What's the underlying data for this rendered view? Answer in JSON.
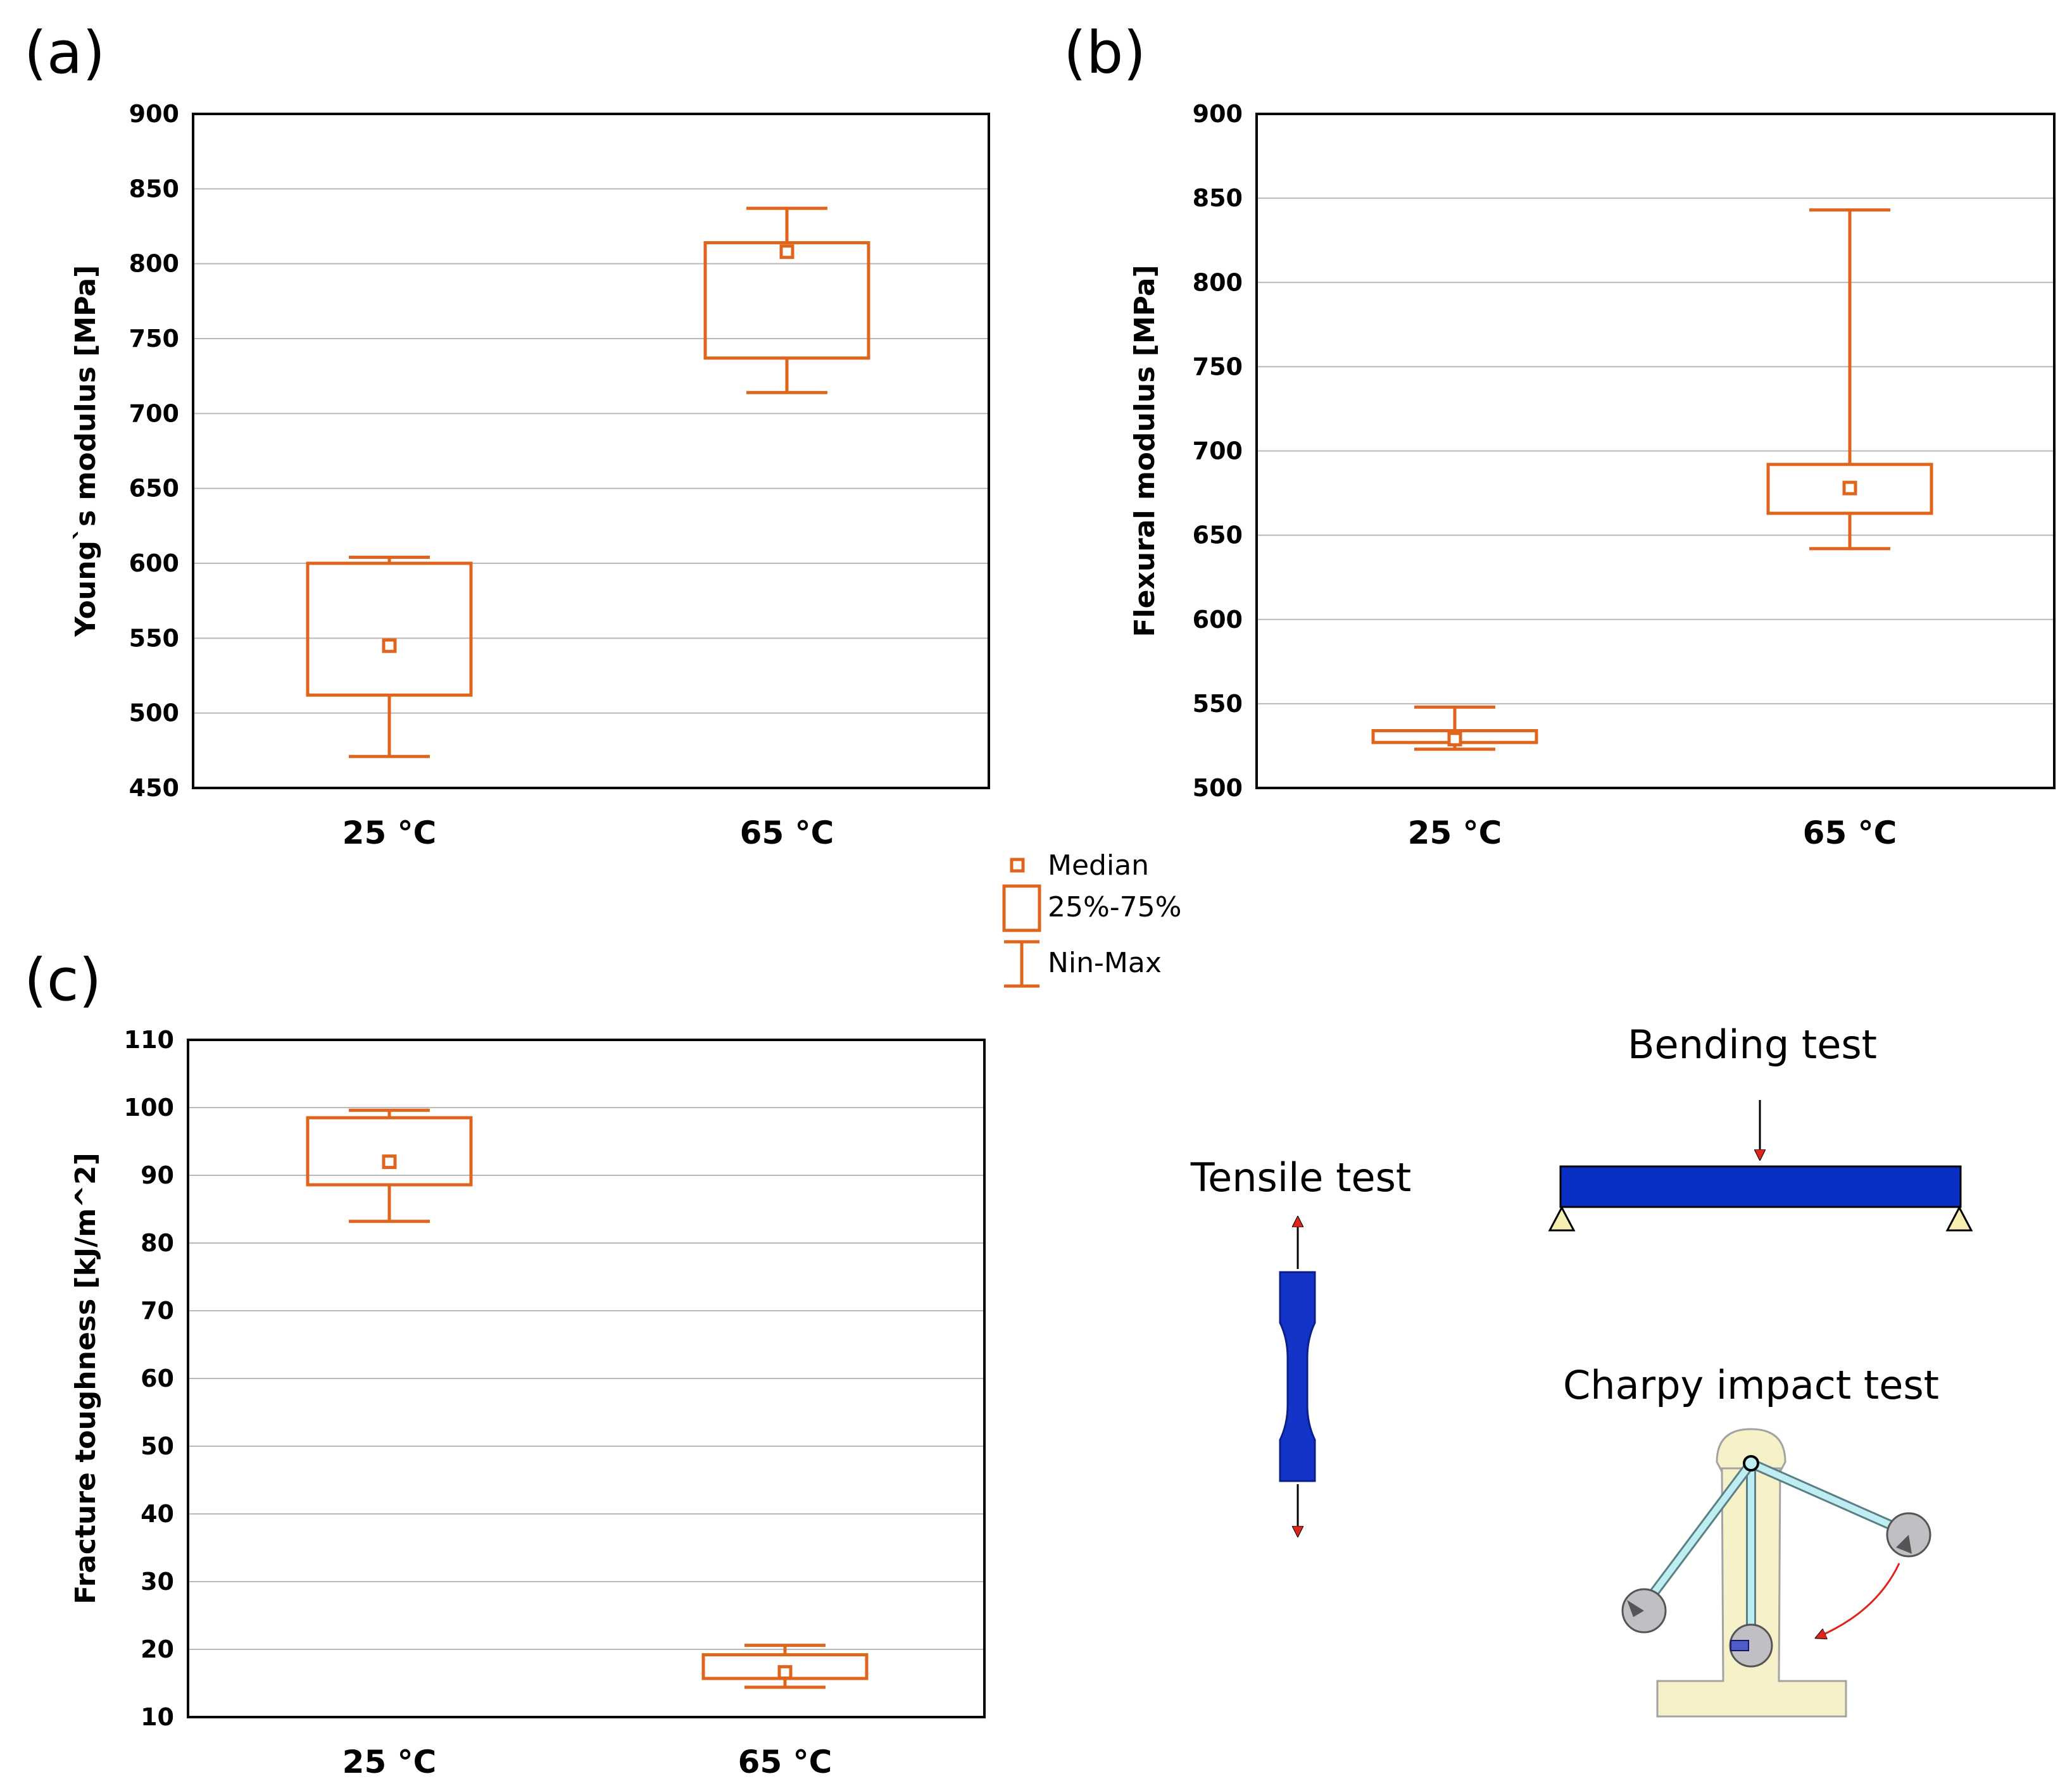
{
  "colors": {
    "box": "#e0651c",
    "tensile_specimen": "#1434c8",
    "beam": "#0a2fc4",
    "arrow": "#e0241c",
    "support": "#f7efb0",
    "machine": "#f6f1c8",
    "pendulum_rod": "#bfeef2",
    "hammer": "#bfbfc4"
  },
  "panels": {
    "a": {
      "label": "(a)"
    },
    "b": {
      "label": "(b)"
    },
    "c": {
      "label": "(c)"
    }
  },
  "legend": {
    "items": [
      {
        "symbol": "median-marker",
        "label": "Median"
      },
      {
        "symbol": "box",
        "label": "25%-75%"
      },
      {
        "symbol": "whisker",
        "label": "Nin-Max"
      }
    ]
  },
  "chart_data": [
    {
      "type": "box",
      "panel": "(a)",
      "ylabel": "Young`s modulus [MPa]",
      "ylim": [
        450,
        900
      ],
      "yticks": [
        450,
        500,
        550,
        600,
        650,
        700,
        750,
        800,
        850,
        900
      ],
      "grid": true,
      "categories": [
        "25 °C",
        "65 °C"
      ],
      "boxes": [
        {
          "min": 471,
          "q1": 512,
          "median": 545,
          "q3": 600,
          "max": 604
        },
        {
          "min": 714,
          "q1": 737,
          "median": 808,
          "q3": 814,
          "max": 837
        }
      ]
    },
    {
      "type": "box",
      "panel": "(b)",
      "ylabel": "Flexural modulus [MPa]",
      "ylim": [
        500,
        900
      ],
      "yticks": [
        500,
        550,
        600,
        650,
        700,
        750,
        800,
        850,
        900
      ],
      "grid": true,
      "categories": [
        "25 °C",
        "65 °C"
      ],
      "boxes": [
        {
          "min": 523,
          "q1": 527,
          "median": 529,
          "q3": 534,
          "max": 548
        },
        {
          "min": 642,
          "q1": 663,
          "median": 678,
          "q3": 692,
          "max": 843
        }
      ]
    },
    {
      "type": "box",
      "panel": "(c)",
      "ylabel": "Fracture toughness [kJ/m^2]",
      "ylim": [
        10,
        110
      ],
      "yticks": [
        10,
        20,
        30,
        40,
        50,
        60,
        70,
        80,
        90,
        100,
        110
      ],
      "grid": true,
      "categories": [
        "25 °C",
        "65 °C"
      ],
      "boxes": [
        {
          "min": 83.2,
          "q1": 88.6,
          "median": 92.0,
          "q3": 98.5,
          "max": 99.6
        },
        {
          "min": 14.4,
          "q1": 15.7,
          "median": 16.6,
          "q3": 19.2,
          "max": 20.6
        }
      ]
    }
  ],
  "illustrations": {
    "tensile": {
      "title": "Tensile test"
    },
    "bending": {
      "title": "Bending test"
    },
    "charpy": {
      "title": "Charpy impact test"
    }
  }
}
